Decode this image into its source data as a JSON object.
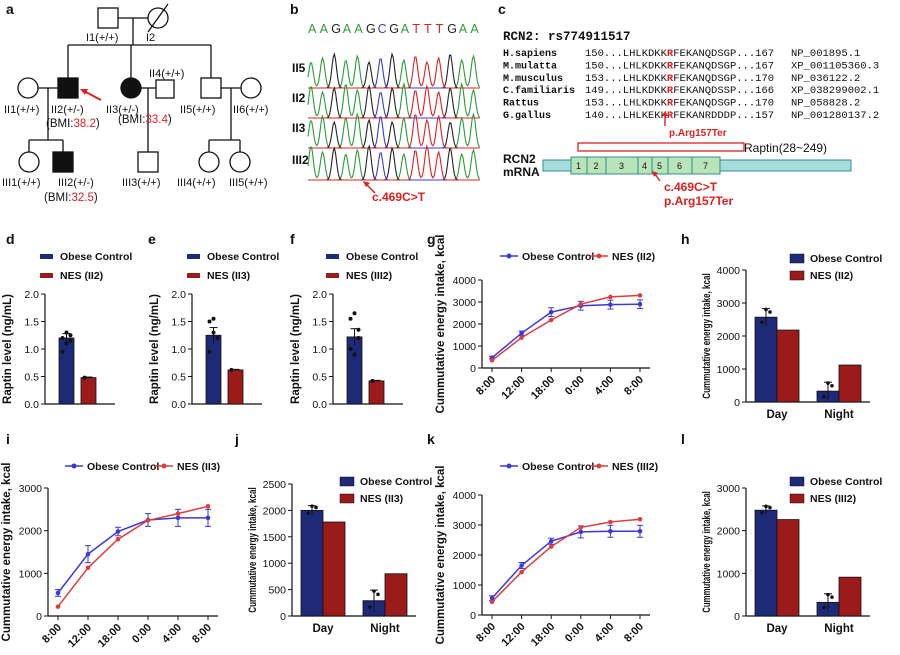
{
  "colors": {
    "blue_bar": "#1e2a78",
    "red_bar": "#9b1b1b",
    "blue_line": "#3a3adb",
    "red_line": "#e03c3c",
    "highlight": "#e02020",
    "nt_A": "#2a9a3a",
    "nt_G": "#222222",
    "nt_C": "#3b3bd8",
    "nt_T": "#e02020",
    "mrna_fill": "#a8dcdc",
    "mrna_stroke": "#2f8f8f",
    "exon_fill": "#b9e3b9"
  },
  "panel_letters": {
    "a": "a",
    "b": "b",
    "c": "c",
    "d": "d",
    "e": "e",
    "f": "f",
    "g": "g",
    "h": "h",
    "i": "i",
    "j": "j",
    "k": "k",
    "l": "l"
  },
  "pedigree": {
    "I1": "I1(+/+)",
    "I2": "I2",
    "II1": "II1(+/+)",
    "II2": "II2(+/-)",
    "II3": "II3(+/-)",
    "II4": "II4(+/+)",
    "II5": "II5(+/+)",
    "II6": "II6(+/+)",
    "III1": "III1(+/+)",
    "III2": "III2(+/-)",
    "III3": "III3(+/+)",
    "III4": "III4(+/+)",
    "III5": "III5(+/+)",
    "bmi_II2_pre": "(BMI:",
    "bmi_II2_val": "38.2",
    "bmi_II2_post": ")",
    "bmi_II3_pre": "(BMI:",
    "bmi_II3_val": "33.4",
    "bmi_II3_post": ")",
    "bmi_III2_pre": "(BMI:",
    "bmi_III2_val": "32.5",
    "bmi_III2_post": ")"
  },
  "chromatogram": {
    "sequence": [
      "A",
      "A",
      "G",
      "A",
      "A",
      "G",
      "C",
      "G",
      "A",
      "T",
      "T",
      "T",
      "G",
      "A",
      "A"
    ],
    "rows": [
      "II5",
      "II2",
      "II3",
      "III2"
    ],
    "mutation_label": "c.469C>T"
  },
  "alignment": {
    "title": "RCN2: rs774911517",
    "rows": [
      {
        "species": "H.sapiens",
        "pre": "150...LHLKDKK",
        "mut": "R",
        "post": "FEKANQDSGP...167",
        "acc": "NP_001895.1"
      },
      {
        "species": "M.mulatta",
        "pre": "150...LHLKDKK",
        "mut": "R",
        "post": "FEKANQDSGP...167",
        "acc": "XP_001105360.3"
      },
      {
        "species": "M.musculus",
        "pre": "153...LHLKDKK",
        "mut": "R",
        "post": "FEKANQDSGP...170",
        "acc": "NP_036122.2"
      },
      {
        "species": "C.familiaris",
        "pre": "149...LHLKDKK",
        "mut": "R",
        "post": "FEKANQDSSP...166",
        "acc": "XP_038299002.1"
      },
      {
        "species": "Rattus",
        "pre": "153...LHLKDKK",
        "mut": "R",
        "post": "FEKANQDSGP...170",
        "acc": "NP_058828.2"
      },
      {
        "species": "G.gallus",
        "pre": "140...LHLKEKK",
        "mut": "R",
        "post": "FEKANRDDDP...157",
        "acc": "NP_001280137.2"
      }
    ],
    "arrow_label": "p.Arg157Ter",
    "raptin_label": "Raptin(28~249)",
    "mrna_label_1": "RCN2",
    "mrna_label_2": "mRNA",
    "exons": [
      "1",
      "2",
      "3",
      "4",
      "5",
      "6",
      "7"
    ],
    "mut_c": "c.469C>T",
    "mut_p": "p.Arg157Ter"
  },
  "chart_data": [
    {
      "id": "d",
      "type": "bar",
      "ylabel": "Raptin level (ng/mL)",
      "ylim": [
        0,
        2.0
      ],
      "yticks": [
        "0.0",
        "0.5",
        "1.0",
        "1.5",
        "2.0"
      ],
      "tick_values": [
        0,
        0.5,
        1.0,
        1.5,
        2.0
      ],
      "legend": [
        "Obese Control",
        "NES (II2)"
      ],
      "values": [
        1.2,
        0.48
      ],
      "errors": [
        0.08,
        0.01
      ],
      "dots": [
        [
          1.2,
          1.1,
          1.25,
          0.95,
          1.3,
          1.15
        ],
        [
          0.48
        ]
      ]
    },
    {
      "id": "e",
      "type": "bar",
      "ylabel": "Raptin level (ng/mL)",
      "ylim": [
        0,
        2.0
      ],
      "yticks": [
        "0.0",
        "0.5",
        "1.0",
        "1.5",
        "2.0"
      ],
      "tick_values": [
        0,
        0.5,
        1.0,
        1.5,
        2.0
      ],
      "legend": [
        "Obese Control",
        "NES (II3)"
      ],
      "values": [
        1.25,
        0.62
      ],
      "errors": [
        0.14,
        0.01
      ],
      "dots": [
        [
          1.5,
          1.55,
          1.2,
          0.95,
          1.3
        ],
        [
          0.62
        ]
      ]
    },
    {
      "id": "f",
      "type": "bar",
      "ylabel": "Raptin level (ng/mL)",
      "ylim": [
        0,
        2.0
      ],
      "yticks": [
        "0.0",
        "0.5",
        "1.0",
        "1.5",
        "2.0"
      ],
      "tick_values": [
        0,
        0.5,
        1.0,
        1.5,
        2.0
      ],
      "legend": [
        "Obese Control",
        "NES (III2)"
      ],
      "values": [
        1.22,
        0.42
      ],
      "errors": [
        0.15,
        0.01
      ],
      "dots": [
        [
          1.55,
          1.65,
          1.35,
          1.0,
          0.9,
          1.2
        ],
        [
          0.42
        ]
      ]
    },
    {
      "id": "g",
      "type": "line",
      "ylabel": "Cummutative energy intake,  kcal",
      "ylim": [
        0,
        4000
      ],
      "yticks": [
        "0",
        "1000",
        "2000",
        "3000",
        "4000"
      ],
      "tick_values": [
        0,
        1000,
        2000,
        3000,
        4000
      ],
      "categories": [
        "8:00",
        "12:00",
        "18:00",
        "0:00",
        "4:00",
        "8:00"
      ],
      "series": [
        {
          "name": "Obese Control",
          "values": [
            470,
            1580,
            2540,
            2830,
            2880,
            2900
          ],
          "errors": [
            60,
            100,
            200,
            200,
            200,
            200
          ]
        },
        {
          "name": "NES (II2)",
          "values": [
            350,
            1380,
            2180,
            2900,
            3230,
            3300
          ],
          "errors": [
            0,
            0,
            0,
            0,
            0,
            0
          ]
        }
      ]
    },
    {
      "id": "h",
      "type": "bar",
      "ylabel": "Cummutative energy intake, kcal",
      "ylim": [
        0,
        4000
      ],
      "yticks": [
        "0",
        "1000",
        "2000",
        "3000",
        "4000"
      ],
      "tick_values": [
        0,
        1000,
        2000,
        3000,
        4000
      ],
      "categories": [
        "Day",
        "Night"
      ],
      "legend": [
        "Obese Control",
        "NES (II2)"
      ],
      "series": [
        {
          "name": "Obese Control",
          "values": [
            2570,
            330
          ],
          "errors": [
            260,
            270
          ]
        },
        {
          "name": "NES (II2)",
          "values": [
            2180,
            1120
          ],
          "errors": [
            0,
            0
          ]
        }
      ]
    },
    {
      "id": "i",
      "type": "line",
      "ylabel": "Cummutative energy intake,  kcal",
      "ylim": [
        0,
        3000
      ],
      "yticks": [
        "0",
        "1000",
        "2000",
        "3000"
      ],
      "tick_values": [
        0,
        1000,
        2000,
        3000
      ],
      "categories": [
        "8:00",
        "12:00",
        "18:00",
        "0:00",
        "4:00",
        "8:00"
      ],
      "series": [
        {
          "name": "Obese Control",
          "values": [
            540,
            1450,
            1980,
            2250,
            2300,
            2300
          ],
          "errors": [
            80,
            200,
            100,
            150,
            200,
            200
          ]
        },
        {
          "name": "NES (II3)",
          "values": [
            220,
            1130,
            1800,
            2240,
            2400,
            2570
          ],
          "errors": [
            0,
            0,
            0,
            0,
            0,
            0
          ]
        }
      ]
    },
    {
      "id": "j",
      "type": "bar",
      "ylabel": "Cummutative energy intake, kcal",
      "ylim": [
        0,
        2500
      ],
      "yticks": [
        "0",
        "500",
        "1000",
        "1500",
        "2000",
        "2500"
      ],
      "tick_values": [
        0,
        500,
        1000,
        1500,
        2000,
        2500
      ],
      "categories": [
        "Day",
        "Night"
      ],
      "legend": [
        "Obese Control",
        "NES (II3)"
      ],
      "series": [
        {
          "name": "Obese Control",
          "values": [
            2000,
            290
          ],
          "errors": [
            90,
            200
          ]
        },
        {
          "name": "NES (II3)",
          "values": [
            1780,
            800
          ],
          "errors": [
            0,
            0
          ]
        }
      ]
    },
    {
      "id": "k",
      "type": "line",
      "ylabel": "Cummutative energy intake,  kcal",
      "ylim": [
        0,
        4000
      ],
      "yticks": [
        "0",
        "1000",
        "2000",
        "3000",
        "4000"
      ],
      "tick_values": [
        0,
        1000,
        2000,
        3000,
        4000
      ],
      "categories": [
        "8:00",
        "12:00",
        "18:00",
        "0:00",
        "4:00",
        "8:00"
      ],
      "series": [
        {
          "name": "Obese Control",
          "values": [
            560,
            1650,
            2460,
            2770,
            2790,
            2790
          ],
          "errors": [
            80,
            100,
            100,
            200,
            200,
            200
          ]
        },
        {
          "name": "NES (III2)",
          "values": [
            440,
            1430,
            2280,
            2920,
            3100,
            3190
          ],
          "errors": [
            0,
            0,
            0,
            0,
            0,
            0
          ]
        }
      ]
    },
    {
      "id": "l",
      "type": "bar",
      "ylabel": "Cummutative energy intake, kcal",
      "ylim": [
        0,
        3000
      ],
      "yticks": [
        "0",
        "1000",
        "2000",
        "3000"
      ],
      "tick_values": [
        0,
        1000,
        2000,
        3000
      ],
      "categories": [
        "Day",
        "Night"
      ],
      "legend": [
        "Obese Control",
        "NES (III2)"
      ],
      "series": [
        {
          "name": "Obese Control",
          "values": [
            2480,
            320
          ],
          "errors": [
            100,
            200
          ]
        },
        {
          "name": "NES (III2)",
          "values": [
            2260,
            910
          ],
          "errors": [
            0,
            0
          ]
        }
      ]
    }
  ]
}
